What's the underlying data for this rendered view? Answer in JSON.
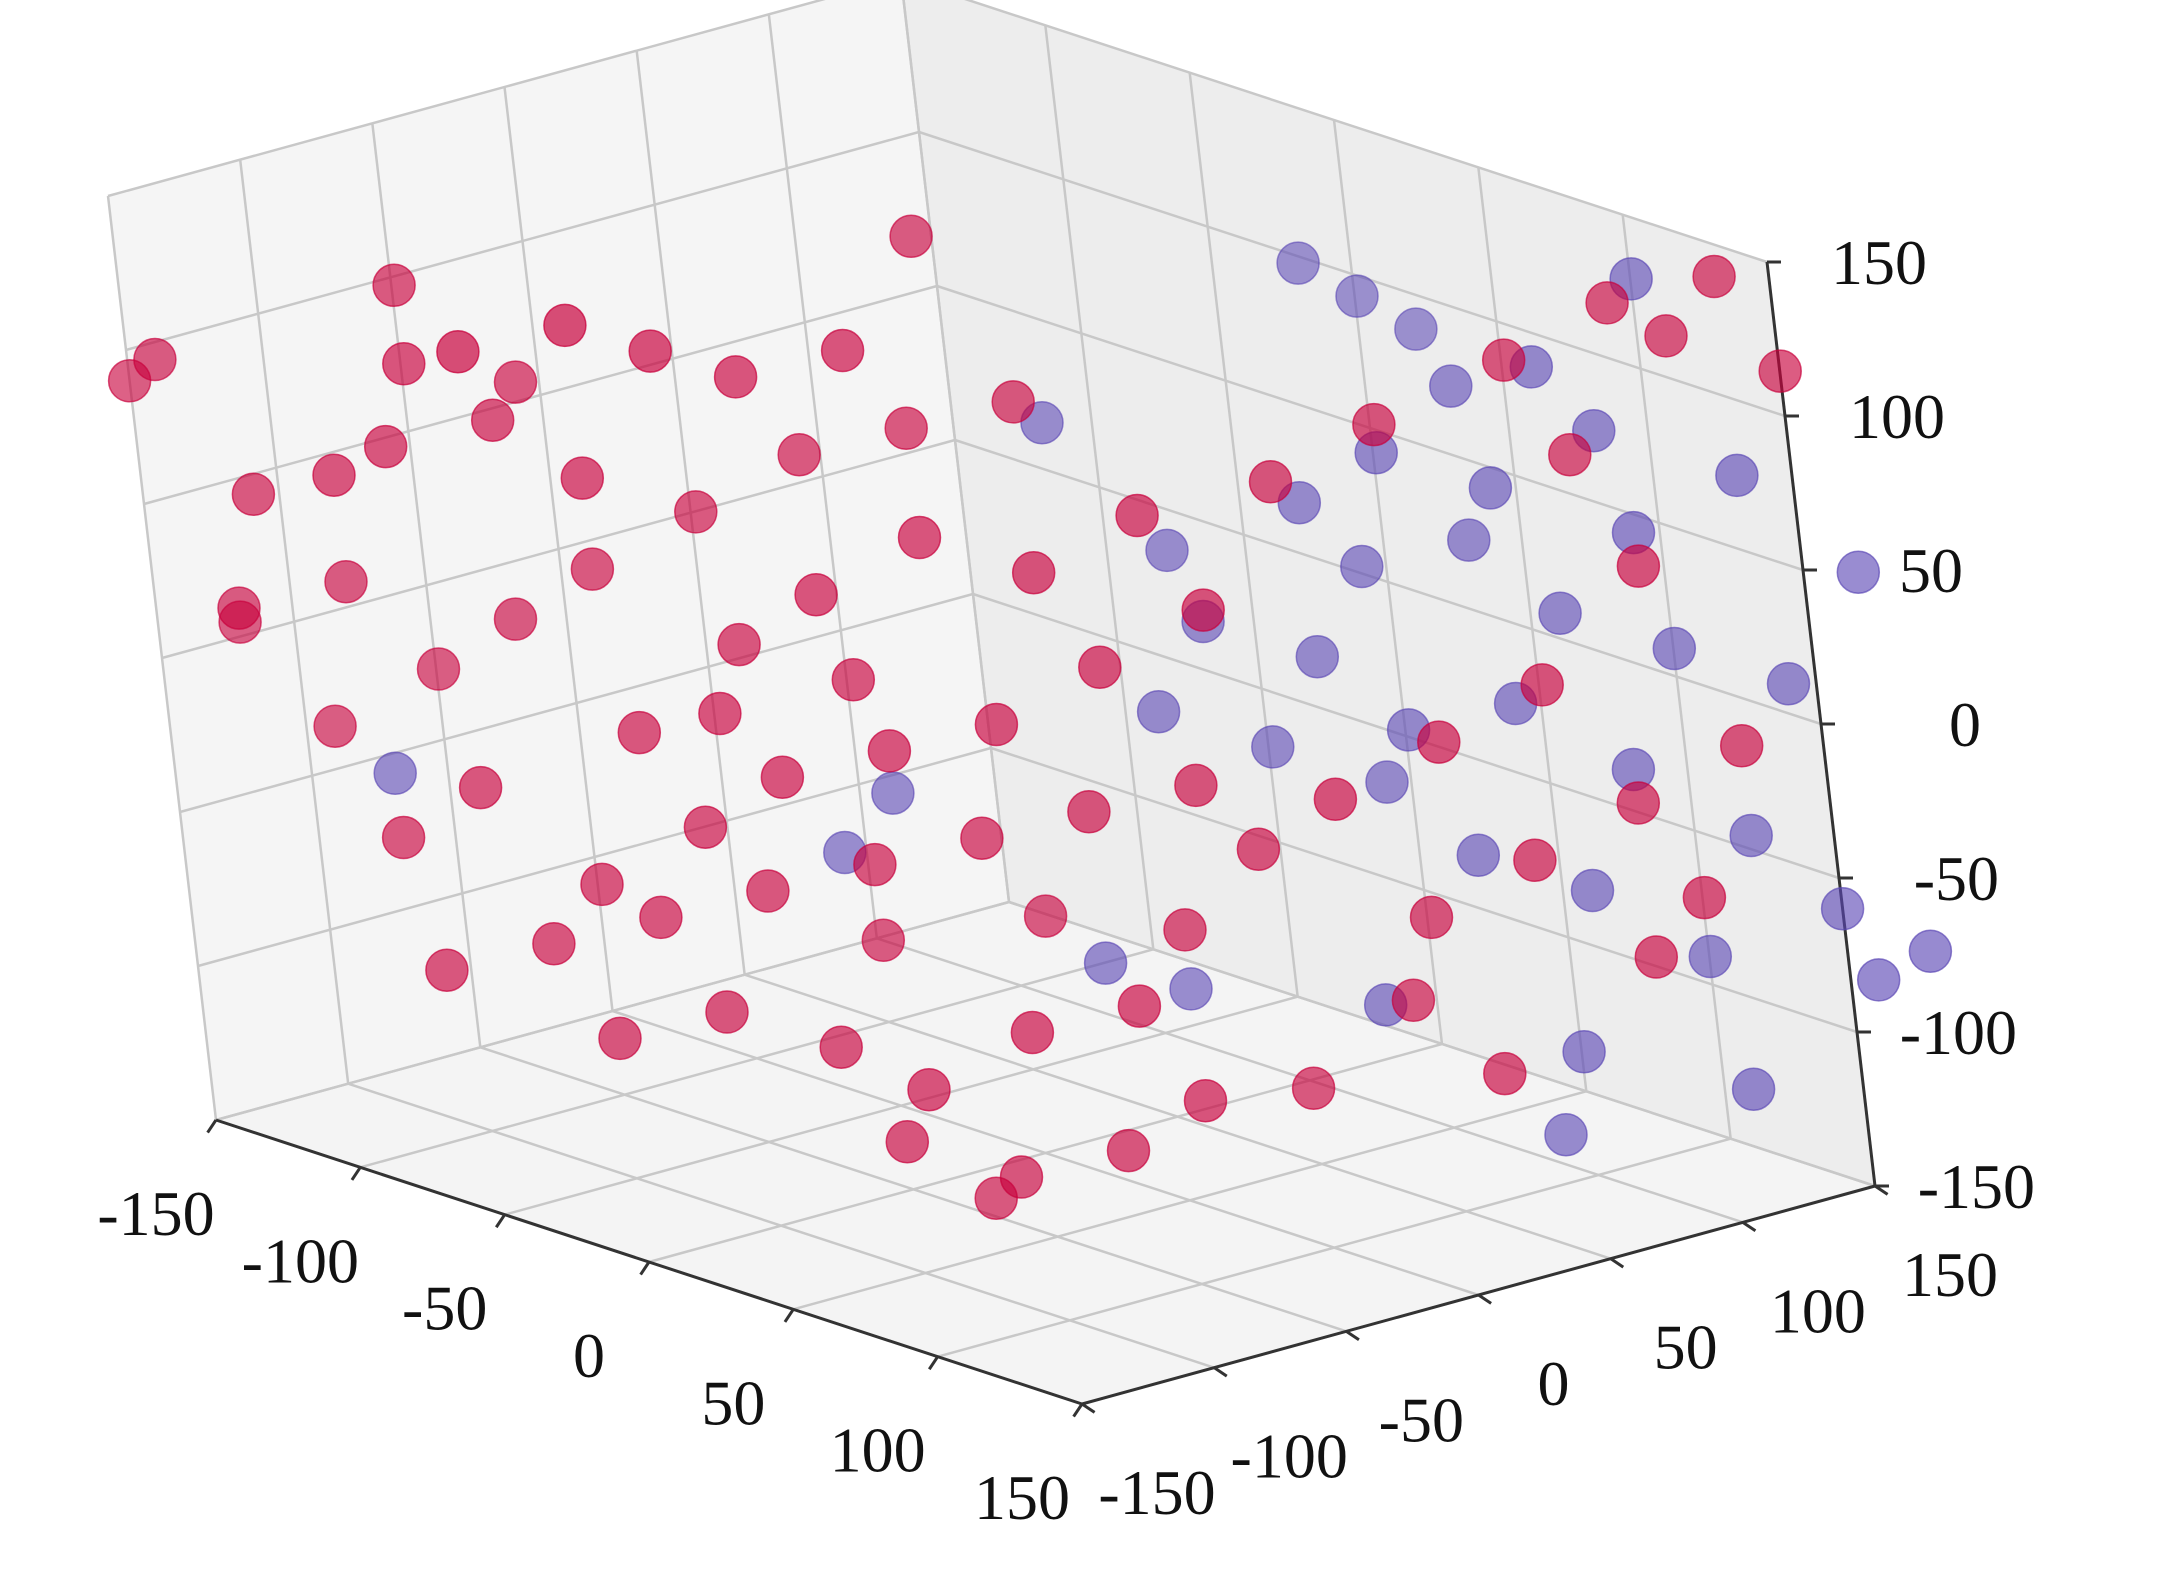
{
  "chart_data": {
    "type": "scatter",
    "projection": "3d",
    "title": "",
    "xlabel": "",
    "ylabel": "",
    "zlabel": "",
    "xlim": [
      -150,
      150
    ],
    "ylim": [
      -150,
      150
    ],
    "zlim": [
      -150,
      150
    ],
    "x_ticks": [
      -150,
      -100,
      -50,
      0,
      50,
      100,
      150
    ],
    "y_ticks": [
      -150,
      -100,
      -50,
      0,
      50,
      100,
      150
    ],
    "z_ticks": [
      -150,
      -100,
      -50,
      0,
      50,
      100,
      150
    ],
    "x_tick_labels": [
      "-150",
      "-100",
      "-50",
      "0",
      "50",
      "100",
      "150"
    ],
    "y_tick_labels": [
      "-150",
      "-100",
      "-50",
      "0",
      "50",
      "100",
      "150"
    ],
    "z_tick_labels": [
      "-150",
      "-100",
      "-50",
      "0",
      "50",
      "100",
      "150"
    ],
    "grid": true,
    "pane_color": "#f2f2f2",
    "colors": {
      "red": "#c8003c",
      "purple": "#5a46b4"
    },
    "series": [
      {
        "color": "red",
        "points": [
          [
            -60,
            -120,
            120
          ],
          [
            -40,
            -100,
            130
          ],
          [
            -80,
            -120,
            110
          ],
          [
            -30,
            -80,
            120
          ],
          [
            -20,
            -60,
            110
          ],
          [
            0,
            -40,
            120
          ],
          [
            -100,
            -130,
            70
          ],
          [
            -120,
            -140,
            60
          ],
          [
            -90,
            -120,
            80
          ],
          [
            -70,
            -100,
            90
          ],
          [
            -50,
            -90,
            75
          ],
          [
            -130,
            -140,
            20
          ],
          [
            -140,
            -130,
            10
          ],
          [
            -110,
            -120,
            30
          ],
          [
            -120,
            -120,
            -20
          ],
          [
            -100,
            -100,
            0
          ],
          [
            -60,
            -80,
            40
          ],
          [
            -40,
            -60,
            60
          ],
          [
            -80,
            -90,
            20
          ],
          [
            -20,
            -40,
            80
          ],
          [
            0,
            -20,
            90
          ],
          [
            20,
            0,
            100
          ],
          [
            -30,
            -60,
            20
          ],
          [
            -10,
            -50,
            40
          ],
          [
            10,
            -30,
            60
          ],
          [
            -50,
            -80,
            -10
          ],
          [
            -30,
            -70,
            0
          ],
          [
            -10,
            -40,
            10
          ],
          [
            30,
            -10,
            50
          ],
          [
            50,
            10,
            70
          ],
          [
            -100,
            -120,
            -50
          ],
          [
            -80,
            -110,
            -30
          ],
          [
            -60,
            -90,
            -60
          ],
          [
            -40,
            -70,
            -40
          ],
          [
            -20,
            -60,
            -20
          ],
          [
            0,
            -40,
            -10
          ],
          [
            20,
            -20,
            0
          ],
          [
            40,
            0,
            20
          ],
          [
            60,
            20,
            40
          ],
          [
            -90,
            -120,
            -90
          ],
          [
            -70,
            -100,
            -80
          ],
          [
            -50,
            -80,
            -70
          ],
          [
            -30,
            -60,
            -60
          ],
          [
            -10,
            -40,
            -50
          ],
          [
            10,
            -20,
            -40
          ],
          [
            30,
            0,
            -30
          ],
          [
            50,
            20,
            -20
          ],
          [
            -60,
            -90,
            -110
          ],
          [
            -40,
            -70,
            -100
          ],
          [
            -20,
            -50,
            -110
          ],
          [
            0,
            -40,
            -120
          ],
          [
            20,
            -20,
            -100
          ],
          [
            40,
            0,
            -90
          ],
          [
            -10,
            -40,
            -140
          ],
          [
            10,
            -20,
            -150
          ],
          [
            30,
            0,
            -140
          ],
          [
            50,
            10,
            -120
          ],
          [
            0,
            -20,
            -160
          ],
          [
            60,
            30,
            -40
          ],
          [
            80,
            40,
            -20
          ],
          [
            100,
            60,
            0
          ],
          [
            120,
            80,
            20
          ],
          [
            140,
            100,
            60
          ],
          [
            90,
            60,
            -60
          ],
          [
            110,
            80,
            -40
          ],
          [
            130,
            100,
            -20
          ],
          [
            150,
            120,
            0
          ],
          [
            70,
            40,
            80
          ],
          [
            90,
            60,
            100
          ],
          [
            110,
            90,
            120
          ],
          [
            130,
            110,
            140
          ],
          [
            150,
            130,
            150
          ],
          [
            140,
            120,
            130
          ],
          [
            160,
            140,
            120
          ],
          [
            120,
            100,
            90
          ],
          [
            80,
            60,
            -90
          ],
          [
            100,
            70,
            -110
          ],
          [
            60,
            40,
            -120
          ],
          [
            140,
            110,
            -50
          ],
          [
            130,
            100,
            -70
          ],
          [
            -150,
            -150,
            90
          ],
          [
            -140,
            -150,
            100
          ],
          [
            -20,
            -30,
            -80
          ],
          [
            10,
            0,
            -70
          ],
          [
            40,
            20,
            -70
          ],
          [
            -70,
            -90,
            100
          ],
          [
            -90,
            -110,
            130
          ],
          [
            0,
            -10,
            150
          ]
        ]
      },
      {
        "color": "purple",
        "points": [
          [
            40,
            90,
            130
          ],
          [
            50,
            100,
            120
          ],
          [
            60,
            110,
            110
          ],
          [
            80,
            100,
            100
          ],
          [
            100,
            110,
            110
          ],
          [
            120,
            130,
            140
          ],
          [
            70,
            80,
            80
          ],
          [
            90,
            100,
            70
          ],
          [
            110,
            120,
            90
          ],
          [
            60,
            80,
            40
          ],
          [
            80,
            100,
            50
          ],
          [
            100,
            110,
            30
          ],
          [
            120,
            130,
            20
          ],
          [
            140,
            150,
            10
          ],
          [
            50,
            70,
            10
          ],
          [
            70,
            80,
            -10
          ],
          [
            90,
            100,
            0
          ],
          [
            110,
            120,
            -20
          ],
          [
            130,
            140,
            -40
          ],
          [
            150,
            150,
            -60
          ],
          [
            20,
            40,
            -10
          ],
          [
            40,
            60,
            -20
          ],
          [
            60,
            80,
            -30
          ],
          [
            80,
            90,
            -50
          ],
          [
            100,
            110,
            -60
          ],
          [
            120,
            130,
            -80
          ],
          [
            -120,
            -100,
            -40
          ],
          [
            -40,
            -20,
            -60
          ],
          [
            -30,
            -10,
            -40
          ],
          [
            10,
            20,
            -90
          ],
          [
            20,
            40,
            -100
          ],
          [
            60,
            70,
            -100
          ],
          [
            100,
            100,
            -110
          ],
          [
            130,
            130,
            -120
          ],
          [
            160,
            150,
            -80
          ],
          [
            170,
            160,
            -70
          ],
          [
            90,
            100,
            -140
          ],
          [
            30,
            50,
            20
          ],
          [
            50,
            70,
            60
          ],
          [
            140,
            140,
            80
          ],
          [
            160,
            160,
            50
          ],
          [
            0,
            30,
            80
          ],
          [
            20,
            50,
            40
          ],
          [
            120,
            120,
            60
          ]
        ]
      }
    ]
  }
}
